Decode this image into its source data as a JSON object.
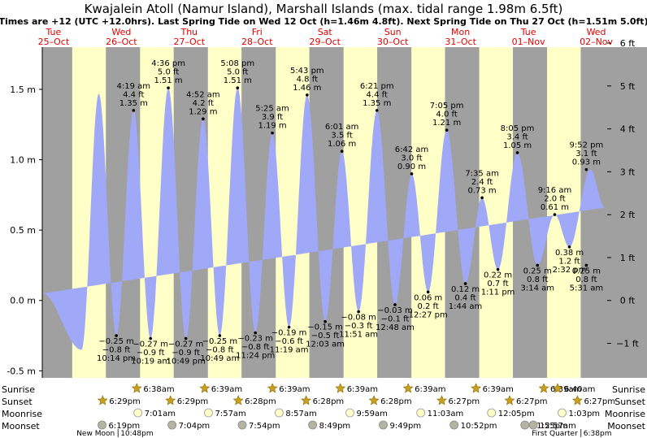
{
  "chart_data": {
    "type": "area",
    "title": "Kwajalein Atoll (Namur Island), Marshall Islands (max. tidal range 1.98m 6.5ft)",
    "subtitle": "Times are +12 (UTC +12.0hrs). Last Spring Tide on Wed 12 Oct (h=1.46m 4.8ft). Next Spring Tide on Thu 27 Oct (h=1.51m 5.0ft)",
    "ylabel_left_unit": "m",
    "ylabel_right_unit": "ft",
    "ylim_m": [
      -0.55,
      1.8
    ],
    "xlim_hours": [
      -4,
      195
    ],
    "yticks_m": [
      "1.5 m",
      "1.0 m",
      "0.5 m",
      "0.0 m",
      "-0.5 m"
    ],
    "yticks_m_values": [
      1.5,
      1.0,
      0.5,
      0.0,
      -0.5
    ],
    "yticks_ft": [
      "6 ft",
      "5 ft",
      "4 ft",
      "3 ft",
      "2 ft",
      "1 ft",
      "0 ft",
      "−1 ft"
    ],
    "yticks_ft_values": [
      6,
      5,
      4,
      3,
      2,
      1,
      0,
      -1
    ],
    "days": [
      {
        "dow": "Tue",
        "date": "25–Oct",
        "hour": 0
      },
      {
        "dow": "Wed",
        "date": "26–Oct",
        "hour": 24
      },
      {
        "dow": "Thu",
        "date": "27–Oct",
        "hour": 48
      },
      {
        "dow": "Fri",
        "date": "28–Oct",
        "hour": 72
      },
      {
        "dow": "Sat",
        "date": "29–Oct",
        "hour": 96
      },
      {
        "dow": "Sun",
        "date": "30–Oct",
        "hour": 120
      },
      {
        "dow": "Mon",
        "date": "31–Oct",
        "hour": 144
      },
      {
        "dow": "Tue",
        "date": "01–Nov",
        "hour": 168
      },
      {
        "dow": "Wed",
        "date": "02–Nov",
        "hour": 192
      }
    ],
    "night_bands_hours": [
      [
        -4,
        6.6
      ],
      [
        18.5,
        30.6
      ],
      [
        42.5,
        54.6
      ],
      [
        66.5,
        78.6
      ],
      [
        90.5,
        102.6
      ],
      [
        114.5,
        126.6
      ],
      [
        138.5,
        150.6
      ],
      [
        162.5,
        174.6
      ],
      [
        186.5,
        195
      ]
    ],
    "tides": [
      {
        "type": "low",
        "hour": 22.2,
        "time": "10:14 pm",
        "ft": "−0.8 ft",
        "m": "−0.25 m",
        "value": -0.25
      },
      {
        "type": "high",
        "hour": 28.3,
        "time": "4:19 am",
        "ft": "4.4 ft",
        "m": "1.35 m",
        "value": 1.35
      },
      {
        "type": "low",
        "hour": 34.3,
        "time": "10:19 am",
        "ft": "−0.9 ft",
        "m": "−0.27 m",
        "value": -0.27
      },
      {
        "type": "high",
        "hour": 40.6,
        "time": "4:36 pm",
        "ft": "5.0 ft",
        "m": "1.51 m",
        "value": 1.51
      },
      {
        "type": "low",
        "hour": 46.8,
        "time": "10:49 pm",
        "ft": "−0.9 ft",
        "m": "−0.27 m",
        "value": -0.27
      },
      {
        "type": "high",
        "hour": 52.9,
        "time": "4:52 am",
        "ft": "4.2 ft",
        "m": "1.29 m",
        "value": 1.29
      },
      {
        "type": "low",
        "hour": 58.8,
        "time": "10:49 am",
        "ft": "−0.8 ft",
        "m": "−0.25 m",
        "value": -0.25
      },
      {
        "type": "high",
        "hour": 65.1,
        "time": "5:08 pm",
        "ft": "5.0 ft",
        "m": "1.51 m",
        "value": 1.51
      },
      {
        "type": "low",
        "hour": 71.4,
        "time": "11:24 pm",
        "ft": "−0.8 ft",
        "m": "−0.23 m",
        "value": -0.23
      },
      {
        "type": "high",
        "hour": 77.4,
        "time": "5:25 am",
        "ft": "3.9 ft",
        "m": "1.19 m",
        "value": 1.19
      },
      {
        "type": "low",
        "hour": 83.3,
        "time": "11:19 am",
        "ft": "−0.6 ft",
        "m": "−0.19 m",
        "value": -0.19
      },
      {
        "type": "high",
        "hour": 89.7,
        "time": "5:43 pm",
        "ft": "4.8 ft",
        "m": "1.46 m",
        "value": 1.46
      },
      {
        "type": "low",
        "hour": 96.1,
        "time": "12:03 am",
        "ft": "−0.5 ft",
        "m": "−0.15 m",
        "value": -0.15
      },
      {
        "type": "high",
        "hour": 102.0,
        "time": "6:01 am",
        "ft": "3.5 ft",
        "m": "1.06 m",
        "value": 1.06
      },
      {
        "type": "low",
        "hour": 107.9,
        "time": "11:51 am",
        "ft": "−0.3 ft",
        "m": "−0.08 m",
        "value": -0.08
      },
      {
        "type": "high",
        "hour": 114.4,
        "time": "6:21 pm",
        "ft": "4.4 ft",
        "m": "1.35 m",
        "value": 1.35
      },
      {
        "type": "low",
        "hour": 120.8,
        "time": "12:48 am",
        "ft": "−0.1 ft",
        "m": "−0.03 m",
        "value": -0.03
      },
      {
        "type": "high",
        "hour": 126.7,
        "time": "6:42 am",
        "ft": "3.0 ft",
        "m": "0.90 m",
        "value": 0.9
      },
      {
        "type": "low",
        "hour": 132.5,
        "time": "12:27 pm",
        "ft": "0.2 ft",
        "m": "0.06 m",
        "value": 0.06
      },
      {
        "type": "high",
        "hour": 139.1,
        "time": "7:05 pm",
        "ft": "4.0 ft",
        "m": "1.21 m",
        "value": 1.21
      },
      {
        "type": "low",
        "hour": 145.7,
        "time": "1:44 am",
        "ft": "0.4 ft",
        "m": "0.12 m",
        "value": 0.12
      },
      {
        "type": "high",
        "hour": 151.6,
        "time": "7:35 am",
        "ft": "2.4 ft",
        "m": "0.73 m",
        "value": 0.73
      },
      {
        "type": "low",
        "hour": 157.2,
        "time": "1:11 pm",
        "ft": "0.7 ft",
        "m": "0.22 m",
        "value": 0.22
      },
      {
        "type": "high",
        "hour": 164.1,
        "time": "8:05 pm",
        "ft": "3.4 ft",
        "m": "1.05 m",
        "value": 1.05
      },
      {
        "type": "low",
        "hour": 171.2,
        "time": "3:14 am",
        "ft": "0.8 ft",
        "m": "0.25 m",
        "value": 0.25
      },
      {
        "type": "high",
        "hour": 177.3,
        "time": "9:16 am",
        "ft": "2.0 ft",
        "m": "0.61 m",
        "value": 0.61
      },
      {
        "type": "low",
        "hour": 182.5,
        "time": "2:32 pm",
        "ft": "1.2 ft",
        "m": "0.38 m",
        "value": 0.38
      },
      {
        "type": "high",
        "hour": 189.9,
        "time": "9:52 pm",
        "ft": "3.1 ft",
        "m": "0.93 m",
        "value": 0.93
      },
      {
        "type": "low",
        "hour": 197.5,
        "time": "5:31 am",
        "ft": "0.8 ft",
        "m": "0.25 m",
        "value": 0.25
      }
    ],
    "curve_start": {
      "hour": -4,
      "value": 0.05
    },
    "curve_end": {
      "hour": 195,
      "value": 0.66
    },
    "extra_extremes": [
      {
        "type": "high",
        "hour": 16.0,
        "value": 1.47
      },
      {
        "type": "low",
        "hour": 9.9,
        "value": -0.35
      }
    ],
    "sunrise": [
      {
        "time": "6:38am",
        "hour": 30.6
      },
      {
        "time": "6:39am",
        "hour": 54.6
      },
      {
        "time": "6:39am",
        "hour": 78.6
      },
      {
        "time": "6:39am",
        "hour": 102.6
      },
      {
        "time": "6:39am",
        "hour": 126.6
      },
      {
        "time": "6:39am",
        "hour": 150.6
      },
      {
        "time": "6:39am",
        "hour": 174.6
      },
      {
        "time": "6:40am",
        "hour": 198.6
      }
    ],
    "sunset": [
      {
        "time": "6:29pm",
        "hour": 18.5
      },
      {
        "time": "6:29pm",
        "hour": 42.5
      },
      {
        "time": "6:28pm",
        "hour": 66.5
      },
      {
        "time": "6:28pm",
        "hour": 90.5
      },
      {
        "time": "6:28pm",
        "hour": 114.5
      },
      {
        "time": "6:27pm",
        "hour": 138.5
      },
      {
        "time": "6:27pm",
        "hour": 162.5
      },
      {
        "time": "6:27pm",
        "hour": 186.5
      }
    ],
    "moonrise": [
      {
        "time": "7:01am",
        "hour": 31.0
      },
      {
        "time": "7:57am",
        "hour": 55.95
      },
      {
        "time": "8:57am",
        "hour": 80.95
      },
      {
        "time": "9:59am",
        "hour": 106.0
      },
      {
        "time": "11:03am",
        "hour": 131.05
      },
      {
        "time": "12:05pm",
        "hour": 156.1
      },
      {
        "time": "1:03pm",
        "hour": 181.05
      }
    ],
    "moonset": [
      {
        "time": "6:19pm",
        "hour": 18.3
      },
      {
        "time": "7:04pm",
        "hour": 43.05
      },
      {
        "time": "7:54pm",
        "hour": 67.9
      },
      {
        "time": "8:49pm",
        "hour": 92.8
      },
      {
        "time": "9:49pm",
        "hour": 117.8
      },
      {
        "time": "10:52pm",
        "hour": 142.85
      },
      {
        "time": "11:55pm",
        "hour": 167.9
      },
      {
        "time": "12:57am",
        "hour": 192.95
      }
    ],
    "moon_phases": [
      {
        "label": "New Moon",
        "time": "10:48pm",
        "hour": 22.8
      },
      {
        "label": "First Quarter",
        "time": "6:38pm",
        "hour": 186.6
      }
    ],
    "row_labels": {
      "sunrise": "Sunrise",
      "sunset": "Sunset",
      "moonrise": "Moonrise",
      "moonset": "Moonset"
    },
    "colors": {
      "day": "#ffffc8",
      "night": "#a0a0a0",
      "water": "#a0a8f8",
      "day_label": "#e00000",
      "sun": "#c8a020",
      "moonrise": "#ffffc8",
      "moonset": "#b4b4a0"
    }
  }
}
